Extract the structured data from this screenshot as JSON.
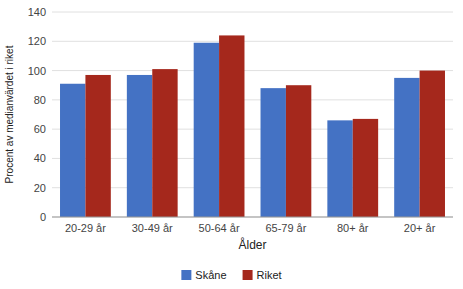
{
  "chart_data": {
    "type": "bar",
    "categories": [
      "20-29 år",
      "30-49 år",
      "50-64 år",
      "65-79 år",
      "80+ år",
      "20+ år"
    ],
    "series": [
      {
        "name": "Skåne",
        "color": "#4472C4",
        "values": [
          91,
          97,
          119,
          88,
          66,
          95
        ]
      },
      {
        "name": "Riket",
        "color": "#A5281C",
        "values": [
          97,
          101,
          124,
          90,
          67,
          100
        ]
      }
    ],
    "xlabel": "Ålder",
    "ylabel": "Procent av medianvärdet i riket",
    "ylim": [
      0,
      140
    ],
    "yticks": [
      0,
      20,
      40,
      60,
      80,
      100,
      120,
      140
    ],
    "grid": true,
    "legend": "bottom"
  }
}
